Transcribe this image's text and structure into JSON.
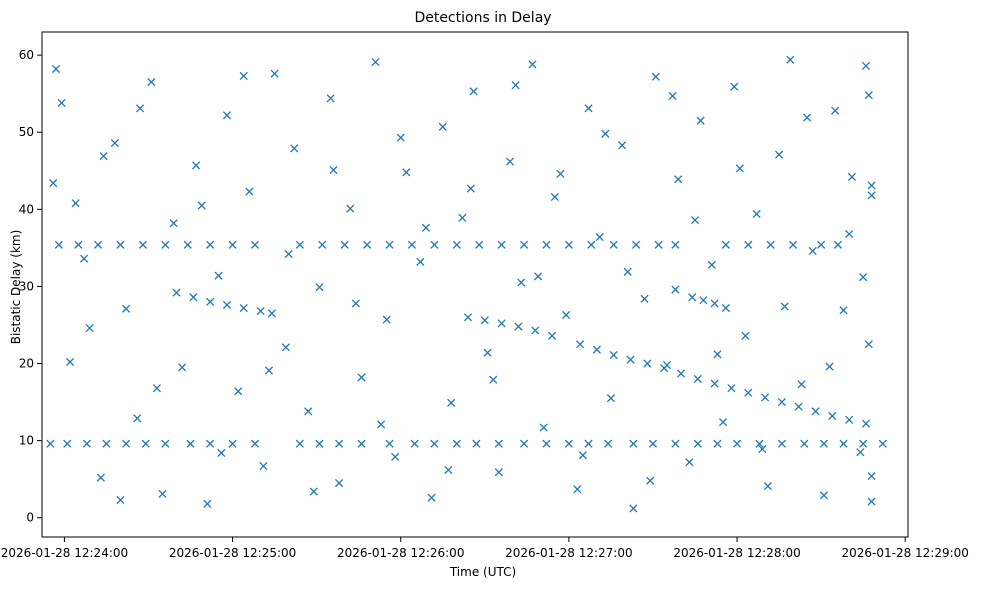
{
  "chart_data": {
    "type": "scatter",
    "title": "Detections in Delay",
    "xlabel": "Time (UTC)",
    "ylabel": "Bistatic Delay (km)",
    "x_ticks": [
      "2026-01-28 12:24:00",
      "2026-01-28 12:25:00",
      "2026-01-28 12:26:00",
      "2026-01-28 12:27:00",
      "2026-01-28 12:28:00",
      "2026-01-28 12:29:00"
    ],
    "y_ticks": [
      "0",
      "10",
      "20",
      "30",
      "40",
      "50",
      "60"
    ],
    "xlim": [
      "2026-01-28 12:23:52",
      "2026-01-28 12:29:01"
    ],
    "ylim": [
      -2.5,
      63
    ],
    "grid": false,
    "marker": "x",
    "color": "#1f77b4",
    "series": [
      {
        "points": [
          [
            "2026-01-28 12:23:55",
            9.6
          ],
          [
            "2026-01-28 12:24:01",
            9.6
          ],
          [
            "2026-01-28 12:24:08",
            9.6
          ],
          [
            "2026-01-28 12:24:15",
            9.6
          ],
          [
            "2026-01-28 12:24:22",
            9.6
          ],
          [
            "2026-01-28 12:24:29",
            9.6
          ],
          [
            "2026-01-28 12:24:36",
            9.6
          ],
          [
            "2026-01-28 12:24:45",
            9.6
          ],
          [
            "2026-01-28 12:24:52",
            9.6
          ],
          [
            "2026-01-28 12:25:00",
            9.6
          ],
          [
            "2026-01-28 12:25:08",
            9.6
          ],
          [
            "2026-01-28 12:25:24",
            9.6
          ],
          [
            "2026-01-28 12:25:31",
            9.6
          ],
          [
            "2026-01-28 12:25:38",
            9.6
          ],
          [
            "2026-01-28 12:25:46",
            9.6
          ],
          [
            "2026-01-28 12:25:56",
            9.6
          ],
          [
            "2026-01-28 12:26:05",
            9.6
          ],
          [
            "2026-01-28 12:26:12",
            9.6
          ],
          [
            "2026-01-28 12:26:20",
            9.6
          ],
          [
            "2026-01-28 12:26:27",
            9.6
          ],
          [
            "2026-01-28 12:26:35",
            9.6
          ],
          [
            "2026-01-28 12:26:44",
            9.6
          ],
          [
            "2026-01-28 12:26:52",
            9.6
          ],
          [
            "2026-01-28 12:27:00",
            9.6
          ],
          [
            "2026-01-28 12:27:07",
            9.6
          ],
          [
            "2026-01-28 12:27:14",
            9.6
          ],
          [
            "2026-01-28 12:27:23",
            9.6
          ],
          [
            "2026-01-28 12:27:30",
            9.6
          ],
          [
            "2026-01-28 12:27:38",
            9.6
          ],
          [
            "2026-01-28 12:27:46",
            9.6
          ],
          [
            "2026-01-28 12:27:53",
            9.6
          ],
          [
            "2026-01-28 12:28:00",
            9.6
          ],
          [
            "2026-01-28 12:28:08",
            9.6
          ],
          [
            "2026-01-28 12:28:16",
            9.6
          ],
          [
            "2026-01-28 12:28:24",
            9.6
          ],
          [
            "2026-01-28 12:28:31",
            9.6
          ],
          [
            "2026-01-28 12:28:38",
            9.6
          ],
          [
            "2026-01-28 12:28:45",
            9.6
          ],
          [
            "2026-01-28 12:28:52",
            9.6
          ],
          [
            "2026-01-28 12:23:58",
            35.4
          ],
          [
            "2026-01-28 12:24:05",
            35.4
          ],
          [
            "2026-01-28 12:24:12",
            35.4
          ],
          [
            "2026-01-28 12:24:20",
            35.4
          ],
          [
            "2026-01-28 12:24:28",
            35.4
          ],
          [
            "2026-01-28 12:24:36",
            35.4
          ],
          [
            "2026-01-28 12:24:44",
            35.4
          ],
          [
            "2026-01-28 12:24:52",
            35.4
          ],
          [
            "2026-01-28 12:25:00",
            35.4
          ],
          [
            "2026-01-28 12:25:08",
            35.4
          ],
          [
            "2026-01-28 12:25:24",
            35.4
          ],
          [
            "2026-01-28 12:25:32",
            35.4
          ],
          [
            "2026-01-28 12:25:40",
            35.4
          ],
          [
            "2026-01-28 12:25:48",
            35.4
          ],
          [
            "2026-01-28 12:25:56",
            35.4
          ],
          [
            "2026-01-28 12:26:04",
            35.4
          ],
          [
            "2026-01-28 12:26:12",
            35.4
          ],
          [
            "2026-01-28 12:26:20",
            35.4
          ],
          [
            "2026-01-28 12:26:28",
            35.4
          ],
          [
            "2026-01-28 12:26:36",
            35.4
          ],
          [
            "2026-01-28 12:26:44",
            35.4
          ],
          [
            "2026-01-28 12:26:52",
            35.4
          ],
          [
            "2026-01-28 12:27:00",
            35.4
          ],
          [
            "2026-01-28 12:27:08",
            35.4
          ],
          [
            "2026-01-28 12:27:16",
            35.4
          ],
          [
            "2026-01-28 12:27:24",
            35.4
          ],
          [
            "2026-01-28 12:27:32",
            35.4
          ],
          [
            "2026-01-28 12:27:38",
            35.4
          ],
          [
            "2026-01-28 12:27:56",
            35.4
          ],
          [
            "2026-01-28 12:28:04",
            35.4
          ],
          [
            "2026-01-28 12:28:12",
            35.4
          ],
          [
            "2026-01-28 12:28:20",
            35.4
          ],
          [
            "2026-01-28 12:28:30",
            35.4
          ],
          [
            "2026-01-28 12:28:36",
            35.4
          ],
          [
            "2026-01-28 12:24:46",
            28.6
          ],
          [
            "2026-01-28 12:24:52",
            28.0
          ],
          [
            "2026-01-28 12:24:58",
            27.6
          ],
          [
            "2026-01-28 12:25:04",
            27.2
          ],
          [
            "2026-01-28 12:25:10",
            26.8
          ],
          [
            "2026-01-28 12:25:14",
            26.5
          ],
          [
            "2026-01-28 12:26:24",
            26.0
          ],
          [
            "2026-01-28 12:26:30",
            25.6
          ],
          [
            "2026-01-28 12:26:36",
            25.2
          ],
          [
            "2026-01-28 12:26:42",
            24.8
          ],
          [
            "2026-01-28 12:26:48",
            24.3
          ],
          [
            "2026-01-28 12:26:54",
            23.6
          ],
          [
            "2026-01-28 12:27:04",
            22.5
          ],
          [
            "2026-01-28 12:27:10",
            21.8
          ],
          [
            "2026-01-28 12:27:16",
            21.1
          ],
          [
            "2026-01-28 12:27:22",
            20.5
          ],
          [
            "2026-01-28 12:27:28",
            20.0
          ],
          [
            "2026-01-28 12:27:34",
            19.4
          ],
          [
            "2026-01-28 12:27:40",
            18.7
          ],
          [
            "2026-01-28 12:27:46",
            18.0
          ],
          [
            "2026-01-28 12:27:52",
            17.4
          ],
          [
            "2026-01-28 12:27:58",
            16.8
          ],
          [
            "2026-01-28 12:28:04",
            16.2
          ],
          [
            "2026-01-28 12:28:10",
            15.6
          ],
          [
            "2026-01-28 12:28:16",
            15.0
          ],
          [
            "2026-01-28 12:28:22",
            14.4
          ],
          [
            "2026-01-28 12:28:28",
            13.8
          ],
          [
            "2026-01-28 12:28:34",
            13.2
          ],
          [
            "2026-01-28 12:28:40",
            12.7
          ],
          [
            "2026-01-28 12:28:46",
            12.2
          ],
          [
            "2026-01-28 12:27:38",
            29.6
          ],
          [
            "2026-01-28 12:27:44",
            28.6
          ],
          [
            "2026-01-28 12:27:48",
            28.2
          ],
          [
            "2026-01-28 12:27:52",
            27.8
          ],
          [
            "2026-01-28 12:27:56",
            27.2
          ],
          [
            "2026-01-28 12:23:56",
            43.4
          ],
          [
            "2026-01-28 12:23:57",
            58.2
          ],
          [
            "2026-01-28 12:23:59",
            53.8
          ],
          [
            "2026-01-28 12:24:04",
            40.8
          ],
          [
            "2026-01-28 12:24:09",
            24.6
          ],
          [
            "2026-01-28 12:24:13",
            5.2
          ],
          [
            "2026-01-28 12:24:18",
            48.6
          ],
          [
            "2026-01-28 12:24:22",
            27.1
          ],
          [
            "2026-01-28 12:24:26",
            12.9
          ],
          [
            "2026-01-28 12:24:31",
            56.5
          ],
          [
            "2026-01-28 12:24:35",
            3.1
          ],
          [
            "2026-01-28 12:24:39",
            38.2
          ],
          [
            "2026-01-28 12:24:42",
            19.5
          ],
          [
            "2026-01-28 12:24:47",
            45.7
          ],
          [
            "2026-01-28 12:24:51",
            1.8
          ],
          [
            "2026-01-28 12:24:55",
            31.4
          ],
          [
            "2026-01-28 12:24:58",
            52.2
          ],
          [
            "2026-01-28 12:25:02",
            16.4
          ],
          [
            "2026-01-28 12:25:06",
            42.3
          ],
          [
            "2026-01-28 12:25:11",
            6.7
          ],
          [
            "2026-01-28 12:25:15",
            57.6
          ],
          [
            "2026-01-28 12:25:19",
            22.1
          ],
          [
            "2026-01-28 12:25:22",
            47.9
          ],
          [
            "2026-01-28 12:25:27",
            13.8
          ],
          [
            "2026-01-28 12:25:31",
            29.9
          ],
          [
            "2026-01-28 12:25:35",
            54.4
          ],
          [
            "2026-01-28 12:25:38",
            4.5
          ],
          [
            "2026-01-28 12:25:42",
            40.1
          ],
          [
            "2026-01-28 12:25:46",
            18.2
          ],
          [
            "2026-01-28 12:25:51",
            59.1
          ],
          [
            "2026-01-28 12:25:55",
            25.7
          ],
          [
            "2026-01-28 12:25:58",
            7.9
          ],
          [
            "2026-01-28 12:26:02",
            44.8
          ],
          [
            "2026-01-28 12:26:07",
            33.2
          ],
          [
            "2026-01-28 12:26:11",
            2.6
          ],
          [
            "2026-01-28 12:26:15",
            50.7
          ],
          [
            "2026-01-28 12:26:18",
            14.9
          ],
          [
            "2026-01-28 12:26:22",
            38.9
          ],
          [
            "2026-01-28 12:26:26",
            55.3
          ],
          [
            "2026-01-28 12:26:31",
            21.4
          ],
          [
            "2026-01-28 12:26:35",
            5.9
          ],
          [
            "2026-01-28 12:26:39",
            46.2
          ],
          [
            "2026-01-28 12:26:43",
            30.5
          ],
          [
            "2026-01-28 12:26:47",
            58.8
          ],
          [
            "2026-01-28 12:26:51",
            11.7
          ],
          [
            "2026-01-28 12:26:55",
            41.6
          ],
          [
            "2026-01-28 12:26:59",
            26.3
          ],
          [
            "2026-01-28 12:27:03",
            3.7
          ],
          [
            "2026-01-28 12:27:07",
            53.1
          ],
          [
            "2026-01-28 12:27:11",
            36.4
          ],
          [
            "2026-01-28 12:27:15",
            15.5
          ],
          [
            "2026-01-28 12:27:19",
            48.3
          ],
          [
            "2026-01-28 12:27:23",
            1.2
          ],
          [
            "2026-01-28 12:27:27",
            28.4
          ],
          [
            "2026-01-28 12:27:31",
            57.2
          ],
          [
            "2026-01-28 12:27:35",
            19.8
          ],
          [
            "2026-01-28 12:27:39",
            43.9
          ],
          [
            "2026-01-28 12:27:43",
            7.2
          ],
          [
            "2026-01-28 12:27:47",
            51.5
          ],
          [
            "2026-01-28 12:27:51",
            32.8
          ],
          [
            "2026-01-28 12:27:55",
            12.4
          ],
          [
            "2026-01-28 12:27:59",
            55.9
          ],
          [
            "2026-01-28 12:28:03",
            23.6
          ],
          [
            "2026-01-28 12:28:07",
            39.4
          ],
          [
            "2026-01-28 12:28:11",
            4.1
          ],
          [
            "2026-01-28 12:28:15",
            47.1
          ],
          [
            "2026-01-28 12:28:19",
            59.4
          ],
          [
            "2026-01-28 12:28:23",
            17.3
          ],
          [
            "2026-01-28 12:28:27",
            34.6
          ],
          [
            "2026-01-28 12:28:31",
            2.9
          ],
          [
            "2026-01-28 12:28:35",
            52.8
          ],
          [
            "2026-01-28 12:28:38",
            26.9
          ],
          [
            "2026-01-28 12:28:41",
            44.2
          ],
          [
            "2026-01-28 12:28:44",
            8.5
          ],
          [
            "2026-01-28 12:28:46",
            58.6
          ],
          [
            "2026-01-28 12:28:47",
            22.5
          ],
          [
            "2026-01-28 12:28:48",
            41.8
          ],
          [
            "2026-01-28 12:28:48",
            5.4
          ],
          [
            "2026-01-28 12:24:02",
            20.2
          ],
          [
            "2026-01-28 12:24:07",
            33.6
          ],
          [
            "2026-01-28 12:24:14",
            46.9
          ],
          [
            "2026-01-28 12:24:20",
            2.3
          ],
          [
            "2026-01-28 12:24:27",
            53.1
          ],
          [
            "2026-01-28 12:24:33",
            16.8
          ],
          [
            "2026-01-28 12:24:40",
            29.2
          ],
          [
            "2026-01-28 12:24:49",
            40.5
          ],
          [
            "2026-01-28 12:24:56",
            8.4
          ],
          [
            "2026-01-28 12:25:04",
            57.3
          ],
          [
            "2026-01-28 12:25:13",
            19.1
          ],
          [
            "2026-01-28 12:25:20",
            34.2
          ],
          [
            "2026-01-28 12:25:29",
            3.4
          ],
          [
            "2026-01-28 12:25:36",
            45.1
          ],
          [
            "2026-01-28 12:25:44",
            27.8
          ],
          [
            "2026-01-28 12:25:53",
            12.1
          ],
          [
            "2026-01-28 12:26:00",
            49.3
          ],
          [
            "2026-01-28 12:26:09",
            37.6
          ],
          [
            "2026-01-28 12:26:17",
            6.2
          ],
          [
            "2026-01-28 12:26:25",
            42.7
          ],
          [
            "2026-01-28 12:26:33",
            17.9
          ],
          [
            "2026-01-28 12:26:41",
            56.1
          ],
          [
            "2026-01-28 12:26:49",
            31.3
          ],
          [
            "2026-01-28 12:26:57",
            44.6
          ],
          [
            "2026-01-28 12:27:05",
            8.1
          ],
          [
            "2026-01-28 12:27:13",
            49.8
          ],
          [
            "2026-01-28 12:27:21",
            31.9
          ],
          [
            "2026-01-28 12:27:29",
            4.8
          ],
          [
            "2026-01-28 12:27:37",
            54.7
          ],
          [
            "2026-01-28 12:27:45",
            38.6
          ],
          [
            "2026-01-28 12:27:53",
            21.2
          ],
          [
            "2026-01-28 12:28:01",
            45.3
          ],
          [
            "2026-01-28 12:28:09",
            8.9
          ],
          [
            "2026-01-28 12:28:17",
            27.4
          ],
          [
            "2026-01-28 12:28:25",
            51.9
          ],
          [
            "2026-01-28 12:28:33",
            19.6
          ],
          [
            "2026-01-28 12:28:40",
            36.8
          ],
          [
            "2026-01-28 12:28:45",
            31.2
          ],
          [
            "2026-01-28 12:28:48",
            43.1
          ],
          [
            "2026-01-28 12:28:48",
            2.1
          ],
          [
            "2026-01-28 12:28:47",
            54.8
          ]
        ]
      }
    ]
  }
}
